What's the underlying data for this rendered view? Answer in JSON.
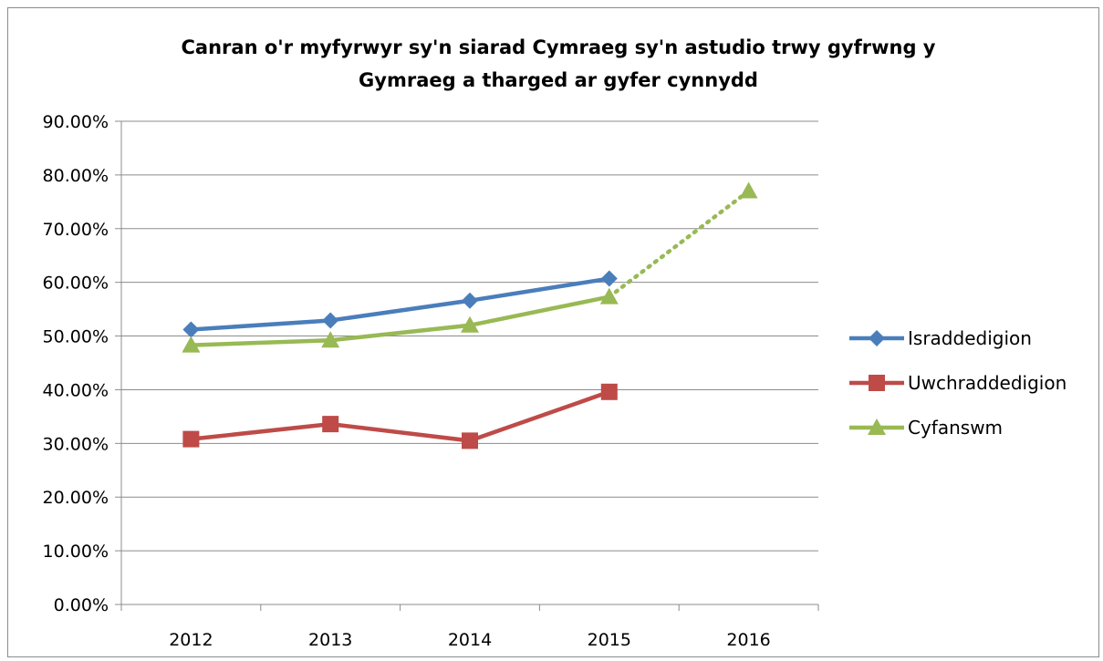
{
  "chart_data": {
    "type": "line",
    "title_lines": [
      "Canran o'r myfyrwyr sy'n siarad Cymraeg sy'n astudio trwy gyfrwng y",
      "Gymraeg a tharged ar gyfer cynnydd"
    ],
    "categories": [
      "2012",
      "2013",
      "2014",
      "2015",
      "2016"
    ],
    "ylim": [
      0,
      90
    ],
    "yticks": [
      0,
      10,
      20,
      30,
      40,
      50,
      60,
      70,
      80,
      90
    ],
    "ytick_labels": [
      "0.00%",
      "10.00%",
      "20.00%",
      "30.00%",
      "40.00%",
      "50.00%",
      "60.00%",
      "70.00%",
      "80.00%",
      "90.00%"
    ],
    "grid": "horizontal",
    "legend_position": "right",
    "series": [
      {
        "name": "Israddedigion",
        "color": "#4a7ebb",
        "marker": "diamond",
        "values": [
          51.2,
          52.9,
          56.6,
          60.7,
          null
        ]
      },
      {
        "name": "Uwchraddedigion",
        "color": "#be4b48",
        "marker": "square",
        "values": [
          30.8,
          33.6,
          30.5,
          39.6,
          null
        ]
      },
      {
        "name": "Cyfanswm",
        "color": "#98b954",
        "marker": "triangle",
        "values": [
          48.3,
          49.2,
          52.0,
          57.3,
          77.0
        ],
        "target_from_index": 3
      }
    ]
  }
}
